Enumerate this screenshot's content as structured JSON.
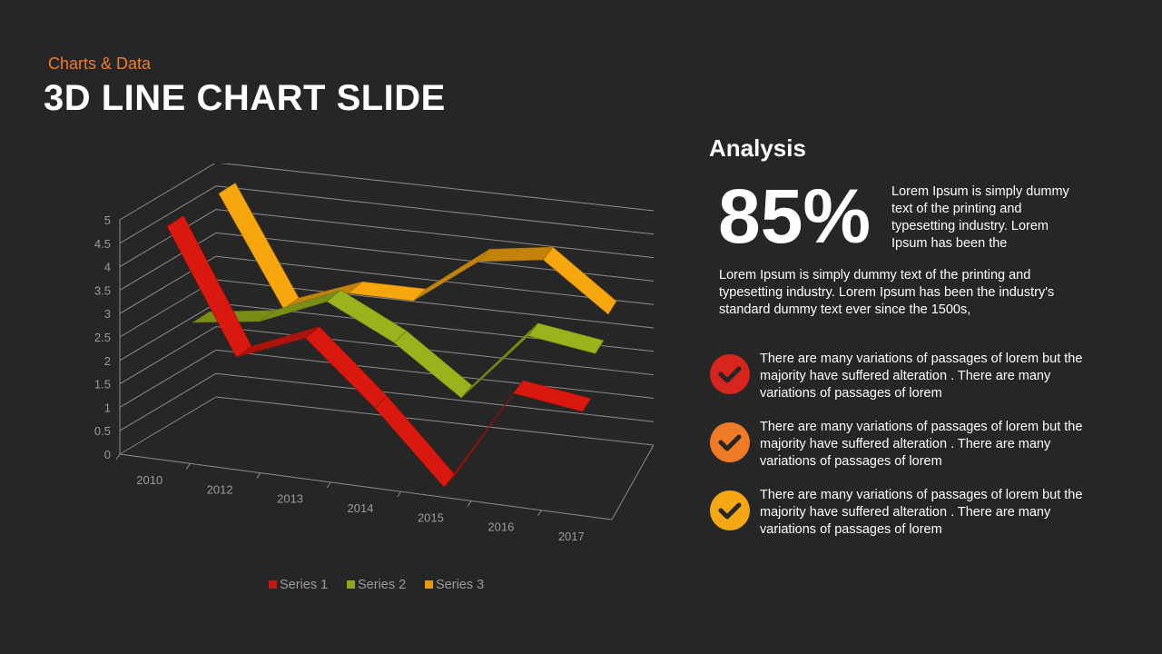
{
  "header": {
    "subtitle": "Charts & Data",
    "title": "3D LINE CHART SLIDE"
  },
  "analysis": {
    "title": "Analysis",
    "big_value": "85%",
    "big_value_text": "Lorem Ipsum is simply dummy text of the printing and typesetting industry. Lorem Ipsum has been the",
    "paragraph": "Lorem Ipsum is simply dummy text of the printing and typesetting industry. Lorem Ipsum has been the industry's standard dummy text ever since the 1500s,"
  },
  "items": [
    {
      "text": "There are many variations of passages of lorem but the majority have suffered alteration . There are many variations of passages of lorem",
      "color": "#d7241c",
      "icon": "check-icon"
    },
    {
      "text": "There are many variations of passages of lorem but the majority have suffered alteration . There are many variations of passages of lorem",
      "color": "#f07b27",
      "icon": "check-icon"
    },
    {
      "text": "There are many variations of passages of lorem but the majority have suffered alteration . There are many variations of passages of lorem",
      "color": "#f6a814",
      "icon": "check-icon"
    }
  ],
  "chart_data": {
    "type": "line",
    "categories": [
      "2010",
      "2012",
      "2013",
      "2014",
      "2015",
      "2016",
      "2017"
    ],
    "series": [
      {
        "name": "Series 1",
        "color": "#c9170e",
        "values": [
          4.8,
          2.2,
          2.8,
          1.5,
          0,
          2.2,
          2.0
        ]
      },
      {
        "name": "Series 2",
        "color": "#8fa61a",
        "values": [
          2.4,
          2.6,
          3.2,
          2.5,
          1.5,
          3.0,
          2.8
        ]
      },
      {
        "name": "Series 3",
        "color": "#e59a0d",
        "values": [
          4.8,
          2.5,
          3.0,
          3.0,
          4.0,
          4.2,
          3.2
        ]
      }
    ],
    "yticks": [
      "0",
      "0.5",
      "1",
      "1.5",
      "2",
      "2.5",
      "3",
      "3.5",
      "4",
      "4.5",
      "5"
    ],
    "ylim": [
      0,
      5
    ],
    "grid": true,
    "legend": "bottom"
  }
}
